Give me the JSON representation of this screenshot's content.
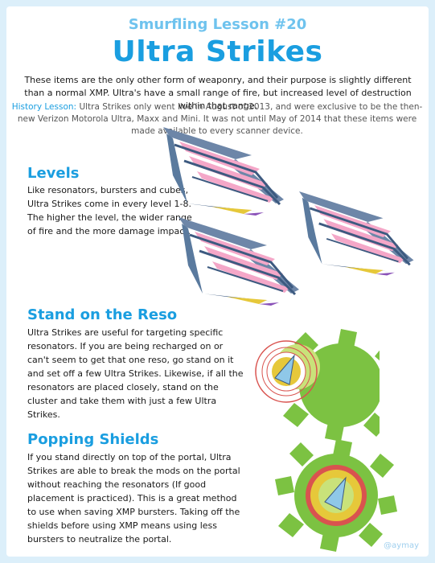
{
  "header": {
    "kicker": "Smurfling Lesson #20",
    "title": "Ultra Strikes",
    "intro": "These items are the only other form of weaponry, and their purpose is slightly different than a normal XMP. Ultra's have a small range of fire, but increased level of destruction within that range.",
    "history_label": "History Lesson:",
    "history_text": "Ultra Strikes only went live in August of 2013, and were exclusive to be the then-new Verizon Motorola Ultra, Maxx and Mini. It was not until May of 2014 that these items were made available to every scanner device."
  },
  "sections": [
    {
      "title": "Levels",
      "body": "Like resonators, bursters and cubes, Ultra Strikes come in every level 1-8. The higher the level, the wider range of fire and the more damage impact."
    },
    {
      "title": "Stand on the Reso",
      "body": "Ultra Strikes are useful for targeting specific resonators. If you are being recharged on or can't seem to get that one reso, go stand on it and set off a few Ultra Strikes. Likewise, if all the resonators are placed closely, stand on the cluster and take them with just a few Ultra Strikes."
    },
    {
      "title": "Popping Shields",
      "body": "If you stand directly on top of the portal, Ultra Strikes are able to break the mods on the portal without reaching the resonators (If good placement is practiced). This is a great method to use when saving XMP bursters. Taking off the shields before using XMP means using less bursters to neutralize the portal."
    }
  ],
  "credit": "@aymay",
  "icons": [
    "ultra-strike-icon",
    "portal-resonator-diagram",
    "portal-shield-diagram"
  ],
  "colors": {
    "accent": "#1a9ee0",
    "kicker": "#6fc3ee",
    "background": "#dceffa",
    "icon_steel": "#5a7a9e",
    "icon_pink": "#f4a7c8",
    "resonator_green": "#7cc242",
    "ring_red": "#d9534f"
  }
}
